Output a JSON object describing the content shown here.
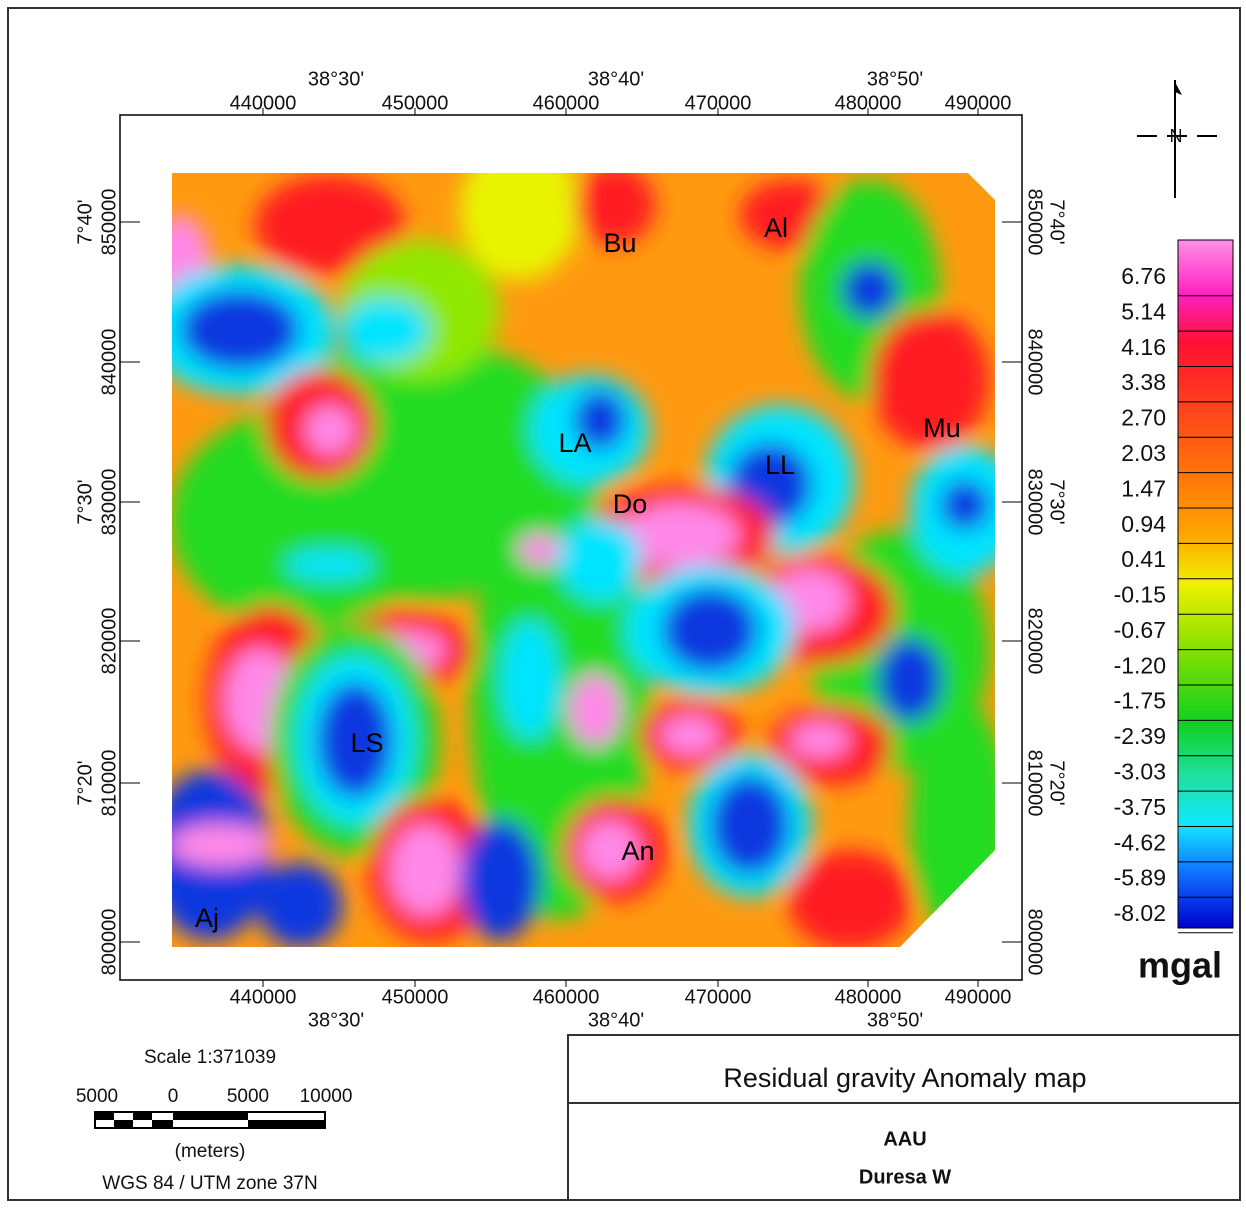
{
  "axes": {
    "utm_x": [
      "440000",
      "450000",
      "460000",
      "470000",
      "480000",
      "490000"
    ],
    "lon": [
      "38°30'",
      "38°40'",
      "38°50'"
    ],
    "utm_y": [
      "850000",
      "840000",
      "830000",
      "820000",
      "810000",
      "800000"
    ],
    "lat": [
      "7°40'",
      "7°30'",
      "7°20'"
    ]
  },
  "places": [
    "Bu",
    "Al",
    "LA",
    "LL",
    "Mu",
    "Do",
    "LS",
    "An",
    "Aj"
  ],
  "legend": {
    "labels": [
      "6.76",
      "5.14",
      "4.16",
      "3.38",
      "2.70",
      "2.03",
      "1.47",
      "0.94",
      "0.41",
      "-0.15",
      "-0.67",
      "-1.20",
      "-1.75",
      "-2.39",
      "-3.03",
      "-3.75",
      "-4.62",
      "-5.89",
      "-8.02"
    ],
    "unit": "mgal"
  },
  "scale": {
    "ratio": "Scale 1:371039",
    "bar_labels": [
      "5000",
      "0",
      "5000",
      "10000"
    ],
    "unit": "(meters)",
    "projection": "WGS 84 / UTM zone 37N"
  },
  "title_block": {
    "title": "Residual gravity Anomaly map",
    "organization": "AAU",
    "author": "Duresa W"
  }
}
